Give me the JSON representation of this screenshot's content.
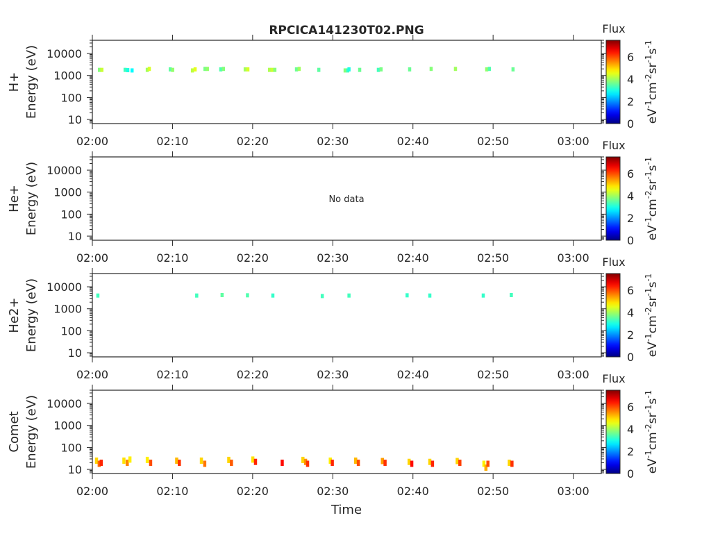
{
  "chart_data": {
    "type": "heatmap",
    "title": "RPCICA141230T02.PNG",
    "xlabel": "Time",
    "x_ticks": [
      "02:00",
      "02:10",
      "02:20",
      "02:30",
      "02:40",
      "02:50",
      "03:00"
    ],
    "xlim": [
      "02:00:00",
      "03:03:30"
    ],
    "y_scale": "log",
    "ylim": [
      6.5,
      40000
    ],
    "y_ticks": [
      "10",
      "100",
      "1000",
      "10000"
    ],
    "colorbar": {
      "label": "Flux",
      "units": "eV-1cm-2sr-1s-1",
      "colormap": "jet",
      "range": [
        0,
        7.5
      ],
      "ticks": [
        "0",
        "2",
        "4",
        "6"
      ]
    },
    "panels": [
      {
        "species": "H+",
        "ylabel": "Energy (eV)",
        "no_data_text": "",
        "cells": [
          [
            "02:00:52",
            1800,
            3.8
          ],
          [
            "02:01:10",
            1800,
            4.3
          ],
          [
            "02:04:04",
            1800,
            3.3
          ],
          [
            "02:04:24",
            1750,
            3.0
          ],
          [
            "02:04:56",
            1700,
            2.8
          ],
          [
            "02:06:50",
            1800,
            4.0
          ],
          [
            "02:07:05",
            2000,
            4.4
          ],
          [
            "02:09:42",
            1900,
            3.5
          ],
          [
            "02:10:00",
            1800,
            3.9
          ],
          [
            "02:12:28",
            1700,
            4.2
          ],
          [
            "02:12:48",
            1900,
            4.5
          ],
          [
            "02:14:02",
            2000,
            3.7
          ],
          [
            "02:14:20",
            2000,
            3.9
          ],
          [
            "02:16:00",
            1900,
            3.4
          ],
          [
            "02:16:20",
            2000,
            3.8
          ],
          [
            "02:19:03",
            1900,
            4.0
          ],
          [
            "02:19:23",
            1900,
            4.4
          ],
          [
            "02:22:05",
            1800,
            4.1
          ],
          [
            "02:22:25",
            1800,
            4.3
          ],
          [
            "02:22:45",
            1800,
            3.8
          ],
          [
            "02:25:27",
            1900,
            3.6
          ],
          [
            "02:25:47",
            2000,
            4.0
          ],
          [
            "02:28:14",
            1800,
            3.5
          ],
          [
            "02:31:31",
            1700,
            3.8
          ],
          [
            "02:31:50",
            1700,
            3.3
          ],
          [
            "02:32:00",
            1900,
            3.0
          ],
          [
            "02:33:20",
            1800,
            3.6
          ],
          [
            "02:35:40",
            1800,
            3.3
          ],
          [
            "02:36:00",
            1900,
            3.7
          ],
          [
            "02:39:34",
            1900,
            3.6
          ],
          [
            "02:42:15",
            2000,
            3.8
          ],
          [
            "02:45:17",
            2000,
            4.0
          ],
          [
            "02:49:11",
            1900,
            3.9
          ],
          [
            "02:49:31",
            2000,
            3.4
          ],
          [
            "02:52:28",
            1900,
            3.6
          ]
        ]
      },
      {
        "species": "He+",
        "ylabel": "Energy (eV)",
        "no_data_text": "No data",
        "cells": []
      },
      {
        "species": "He2+",
        "ylabel": "Energy (eV)",
        "no_data_text": "",
        "cells": [
          [
            "02:00:40",
            4000,
            3.3
          ],
          [
            "02:13:00",
            4000,
            3.3
          ],
          [
            "02:16:10",
            4200,
            3.5
          ],
          [
            "02:19:20",
            4100,
            3.4
          ],
          [
            "02:22:30",
            4000,
            3.2
          ],
          [
            "02:28:40",
            3800,
            3.3
          ],
          [
            "02:32:00",
            4000,
            3.3
          ],
          [
            "02:39:15",
            4100,
            3.2
          ],
          [
            "02:42:05",
            4000,
            3.2
          ],
          [
            "02:48:45",
            4000,
            3.2
          ],
          [
            "02:52:15",
            4200,
            3.3
          ]
        ]
      },
      {
        "species": "Comet",
        "ylabel": "Energy (eV)",
        "no_data_text": "",
        "cells": [
          [
            "02:00:30",
            25,
            5.0
          ],
          [
            "02:00:50",
            18,
            5.8
          ],
          [
            "02:01:05",
            20,
            6.3
          ],
          [
            "02:03:55",
            25,
            4.9
          ],
          [
            "02:04:20",
            20,
            5.6
          ],
          [
            "02:04:40",
            28,
            4.8
          ],
          [
            "02:06:50",
            27,
            4.8
          ],
          [
            "02:07:15",
            20,
            6.0
          ],
          [
            "02:10:30",
            25,
            5.2
          ],
          [
            "02:10:50",
            20,
            6.2
          ],
          [
            "02:13:35",
            25,
            5.0
          ],
          [
            "02:14:00",
            18,
            5.7
          ],
          [
            "02:17:00",
            27,
            5.0
          ],
          [
            "02:17:20",
            20,
            5.9
          ],
          [
            "02:20:00",
            28,
            4.9
          ],
          [
            "02:20:20",
            22,
            6.3
          ],
          [
            "02:23:40",
            20,
            6.5
          ],
          [
            "02:26:15",
            27,
            5.0
          ],
          [
            "02:26:35",
            22,
            5.5
          ],
          [
            "02:26:50",
            18,
            6.2
          ],
          [
            "02:29:40",
            25,
            4.8
          ],
          [
            "02:29:55",
            20,
            6.3
          ],
          [
            "02:32:50",
            25,
            5.2
          ],
          [
            "02:33:10",
            20,
            6.0
          ],
          [
            "02:36:10",
            24,
            5.4
          ],
          [
            "02:36:30",
            20,
            6.2
          ],
          [
            "02:39:30",
            22,
            5.0
          ],
          [
            "02:39:50",
            18,
            6.5
          ],
          [
            "02:42:05",
            22,
            5.0
          ],
          [
            "02:42:25",
            18,
            6.3
          ],
          [
            "02:45:30",
            24,
            5.0
          ],
          [
            "02:45:50",
            20,
            6.1
          ],
          [
            "02:48:50",
            18,
            4.8
          ],
          [
            "02:49:05",
            12,
            5.3
          ],
          [
            "02:49:20",
            18,
            6.0
          ],
          [
            "02:52:00",
            20,
            5.0
          ],
          [
            "02:52:20",
            18,
            6.2
          ]
        ]
      }
    ]
  }
}
